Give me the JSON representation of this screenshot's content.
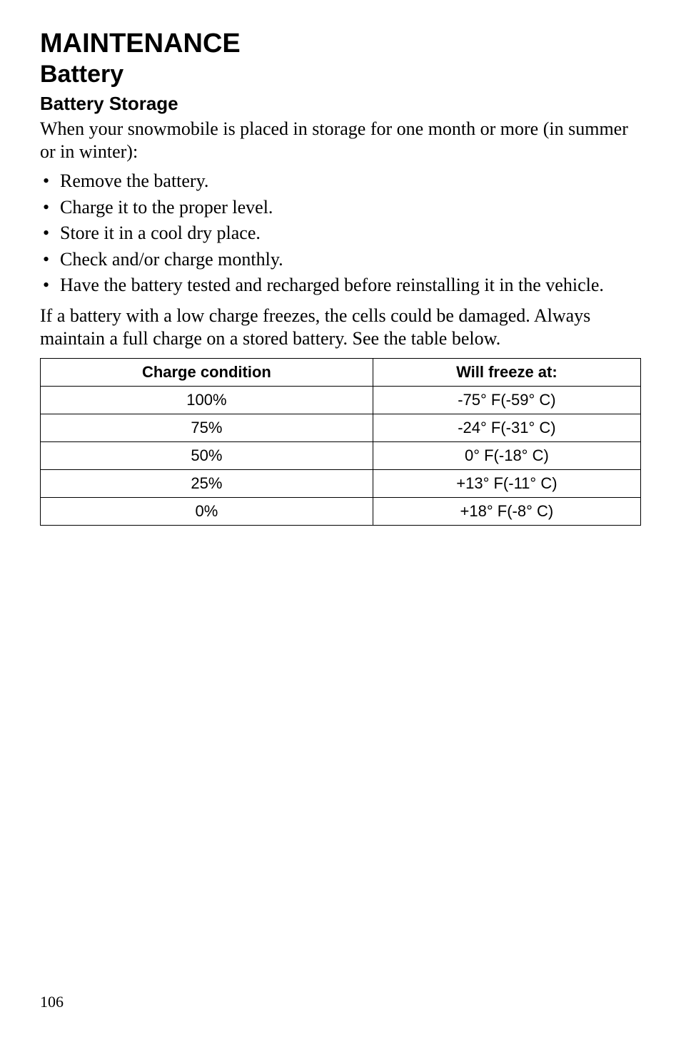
{
  "headings": {
    "h1": "MAINTENANCE",
    "h2": "Battery",
    "h3": "Battery Storage"
  },
  "paragraphs": {
    "intro": "When your snowmobile is placed in storage for one month or more (in summer or in winter):",
    "freeze_note": "If a battery with a low charge freezes, the cells could be damaged. Always maintain a full charge on a stored battery. See the table below."
  },
  "bullets": [
    "Remove the battery.",
    "Charge it to the proper level.",
    "Store it in a cool dry place.",
    "Check and/or charge monthly.",
    "Have the battery tested and recharged before reinstalling it in the vehicle."
  ],
  "table": {
    "columns": [
      "Charge condition",
      "Will freeze at:"
    ],
    "rows": [
      [
        "100%",
        "-75° F(-59° C)"
      ],
      [
        "75%",
        "-24° F(-31° C)"
      ],
      [
        "50%",
        "0° F(-18° C)"
      ],
      [
        "25%",
        "+13° F(-11° C)"
      ],
      [
        "0%",
        "+18° F(-8° C)"
      ]
    ],
    "header_fontsize": 22,
    "cell_fontsize": 22,
    "border_color": "#000000",
    "background_color": "#ffffff",
    "column_align": [
      "center",
      "center"
    ]
  },
  "page_number": "106",
  "colors": {
    "text": "#000000",
    "background": "#ffffff"
  },
  "fonts": {
    "heading_family": "Helvetica, Arial, sans-serif",
    "body_family": "Times New Roman, Times, serif"
  }
}
